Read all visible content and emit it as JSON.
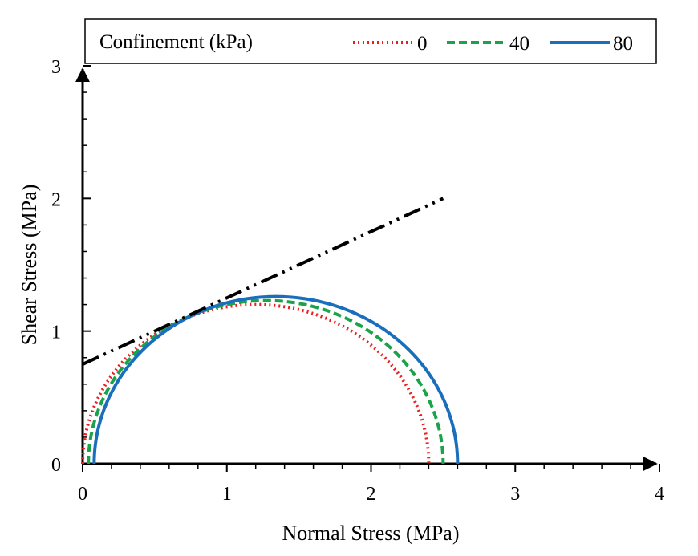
{
  "chart_data": {
    "type": "line",
    "xlabel": "Normal Stress (MPa)",
    "ylabel": "Shear Stress (MPa)",
    "xlim": [
      0,
      4
    ],
    "ylim": [
      0,
      3
    ],
    "xticks": [
      "0",
      "1",
      "2",
      "3",
      "4"
    ],
    "yticks": [
      "0",
      "1",
      "2",
      "3"
    ],
    "grid": false,
    "legend": {
      "title": "Confinement (kPa)",
      "placement": "top",
      "entries": [
        "0",
        "40",
        "80"
      ]
    },
    "series": [
      {
        "name": "0",
        "type": "mohr_circle",
        "sigma3": 0.0,
        "sigma1": 2.4,
        "color": "#ee1c1c",
        "style": "dotted"
      },
      {
        "name": "40",
        "type": "mohr_circle",
        "sigma3": 0.04,
        "sigma1": 2.5,
        "color": "#1aa34a",
        "style": "dashed"
      },
      {
        "name": "80",
        "type": "mohr_circle",
        "sigma3": 0.08,
        "sigma1": 2.6,
        "color": "#1a6fbd",
        "style": "solid"
      },
      {
        "type": "failure_envelope",
        "x": [
          0,
          2.5
        ],
        "y": [
          0.75,
          2.0
        ],
        "color": "#000000",
        "style": "dash-dot-dot"
      }
    ]
  }
}
